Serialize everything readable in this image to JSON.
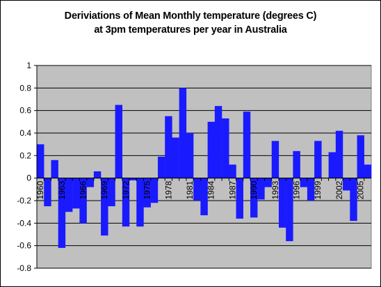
{
  "chart_data": {
    "type": "bar",
    "title_lines": [
      "Deriviations of Mean Monthly temperature (degrees C)",
      "at 3pm temperatures per year in Australia"
    ],
    "xlabel": "",
    "ylabel": "",
    "ylim": [
      -0.8,
      1
    ],
    "yticks": [
      "1",
      "0.8",
      "0.6",
      "0.4",
      "0.2",
      "0",
      "-0.2",
      "-0.4",
      "-0.6",
      "-0.8"
    ],
    "ytick_values": [
      1,
      0.8,
      0.6,
      0.4,
      0.2,
      0,
      -0.2,
      -0.4,
      -0.6,
      -0.8
    ],
    "grid": "horizontal",
    "legend": "none",
    "categories": [
      1960,
      1961,
      1962,
      1963,
      1964,
      1965,
      1966,
      1967,
      1968,
      1969,
      1970,
      1971,
      1972,
      1973,
      1974,
      1975,
      1976,
      1977,
      1978,
      1979,
      1980,
      1981,
      1982,
      1983,
      1984,
      1985,
      1986,
      1987,
      1988,
      1989,
      1990,
      1991,
      1992,
      1993,
      1994,
      1995,
      1996,
      1997,
      1998,
      1999,
      2000,
      2001,
      2002,
      2003,
      2004,
      2005,
      2006
    ],
    "visible_category_labels": [
      "1960",
      "1963",
      "1966",
      "1969",
      "1972",
      "1975",
      "1978",
      "1981",
      "1984",
      "1987",
      "1990",
      "1993",
      "1996",
      "1999",
      "2002",
      "2005"
    ],
    "values": [
      0.3,
      -0.25,
      0.16,
      -0.62,
      -0.3,
      -0.27,
      -0.4,
      -0.08,
      0.06,
      -0.51,
      -0.25,
      0.65,
      -0.43,
      -0.02,
      -0.43,
      -0.26,
      -0.22,
      0.19,
      0.55,
      0.36,
      0.8,
      0.4,
      -0.2,
      -0.33,
      0.5,
      0.64,
      0.53,
      0.12,
      -0.36,
      0.59,
      -0.35,
      -0.19,
      -0.08,
      0.33,
      -0.44,
      -0.56,
      0.24,
      -0.08,
      -0.2,
      0.33,
      0.0,
      0.23,
      0.42,
      -0.11,
      -0.38,
      0.38,
      0.12
    ],
    "colors": {
      "bar": "#1a1aff",
      "plot_background": "#c0c0c0",
      "gridline": "#000000",
      "axis": "#000000"
    }
  }
}
